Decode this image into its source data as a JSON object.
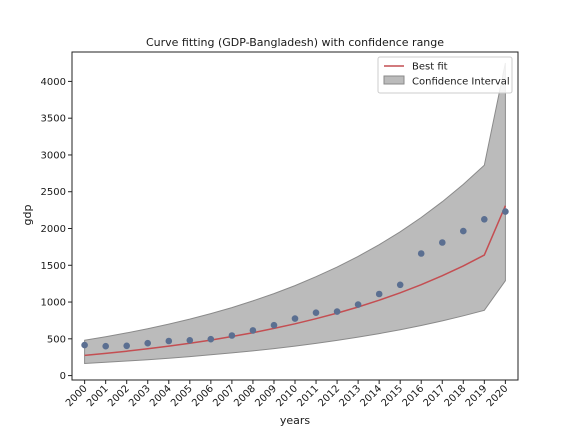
{
  "chart_data": {
    "type": "scatter",
    "title": "Curve fitting (GDP-Bangladesh) with confidence range",
    "xlabel": "years",
    "ylabel": "gdp",
    "xlim": [
      1999.4,
      2020.6
    ],
    "ylim": [
      -60,
      4400
    ],
    "x": [
      2000,
      2001,
      2002,
      2003,
      2004,
      2005,
      2006,
      2007,
      2008,
      2009,
      2010,
      2011,
      2012,
      2013,
      2014,
      2015,
      2016,
      2017,
      2018,
      2019,
      2020
    ],
    "x_tick_labels": [
      "2000",
      "2001",
      "2002",
      "2003",
      "2004",
      "2005",
      "2006",
      "2007",
      "2008",
      "2009",
      "2010",
      "2011",
      "2012",
      "2013",
      "2014",
      "2015",
      "2016",
      "2017",
      "2018",
      "2019",
      "2020"
    ],
    "y_ticks": [
      0,
      500,
      1000,
      1500,
      2000,
      2500,
      3000,
      3500,
      4000
    ],
    "y_tick_labels": [
      "0",
      "500",
      "1000",
      "1500",
      "2000",
      "2500",
      "3000",
      "3500",
      "4000"
    ],
    "series": [
      {
        "type": "scatter",
        "color": "#5b6f91",
        "values": [
          415,
          400,
          405,
          440,
          470,
          480,
          495,
          545,
          615,
          685,
          775,
          855,
          870,
          965,
          1110,
          1235,
          1660,
          1810,
          1965,
          2125,
          2230
        ]
      },
      {
        "name": "Best fit",
        "type": "line",
        "color": "#c44e52",
        "values": [
          275,
          302,
          332,
          365,
          401,
          440,
          483,
          531,
          583,
          641,
          704,
          773,
          849,
          933,
          1025,
          1126,
          1236,
          1358,
          1492,
          1639,
          2310
        ]
      }
    ],
    "confidence_interval": {
      "name": "Confidence Interval",
      "color": "#bbbbbb",
      "edge_color": "#8a8a8a",
      "lower": [
        165,
        180,
        198,
        216,
        236,
        258,
        282,
        308,
        336,
        367,
        401,
        438,
        479,
        523,
        571,
        624,
        681,
        744,
        813,
        888,
        1290
      ],
      "upper": [
        480,
        528,
        580,
        637,
        700,
        768,
        843,
        925,
        1016,
        1115,
        1224,
        1344,
        1475,
        1620,
        1780,
        1955,
        2150,
        2365,
        2600,
        2860,
        4250
      ]
    },
    "legend": {
      "position": "top-right",
      "entries": [
        "Best fit",
        "Confidence Interval"
      ]
    },
    "grid": false
  }
}
